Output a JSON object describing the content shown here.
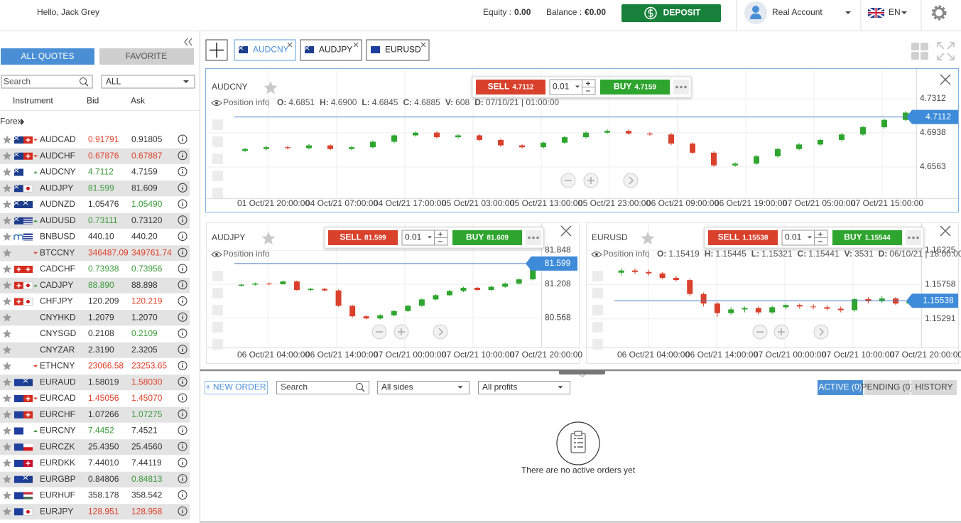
{
  "header": {
    "greeting": "Hello, Jack Grey",
    "equity_label": "Equity :",
    "equity": "0.00",
    "balance_label": "Balance :",
    "balance": "€0.00",
    "deposit": "DEPOSIT",
    "account": "Real Account",
    "language": "EN"
  },
  "sidebar": {
    "tabs": [
      "ALL QUOTES",
      "FAVORITE"
    ],
    "search": "Search",
    "filter": "ALL",
    "columns": [
      "Instrument",
      "Bid",
      "Ask"
    ],
    "group": "Forex",
    "rows": [
      {
        "symbol": "AUDCAD",
        "bid": "0.91791",
        "ask": "0.91805",
        "bid_dir": "down",
        "ask_dir": "flat",
        "arrow": "down"
      },
      {
        "symbol": "AUDCHF",
        "bid": "0.67876",
        "ask": "0.67887",
        "bid_dir": "down",
        "ask_dir": "down",
        "arrow": "down"
      },
      {
        "symbol": "AUDCNY",
        "bid": "4.7112",
        "ask": "4.7159",
        "bid_dir": "up",
        "ask_dir": "flat",
        "arrow": "up"
      },
      {
        "symbol": "AUDJPY",
        "bid": "81.599",
        "ask": "81.609",
        "bid_dir": "up",
        "ask_dir": "flat"
      },
      {
        "symbol": "AUDNZD",
        "bid": "1.05476",
        "ask": "1.05490",
        "bid_dir": "flat",
        "ask_dir": "up"
      },
      {
        "symbol": "AUDUSD",
        "bid": "0.73111",
        "ask": "0.73120",
        "bid_dir": "up",
        "ask_dir": "flat",
        "arrow": "up"
      },
      {
        "symbol": "BNBUSD",
        "bid": "440.10",
        "ask": "440.20",
        "bid_dir": "flat",
        "ask_dir": "flat"
      },
      {
        "symbol": "BTCCNY",
        "bid": "346487.09",
        "ask": "349761.74",
        "bid_dir": "down",
        "ask_dir": "down",
        "arrow": "down"
      },
      {
        "symbol": "CADCHF",
        "bid": "0.73938",
        "ask": "0.73956",
        "bid_dir": "up",
        "ask_dir": "up"
      },
      {
        "symbol": "CADJPY",
        "bid": "88.890",
        "ask": "88.898",
        "bid_dir": "up",
        "ask_dir": "flat",
        "arrow": "up"
      },
      {
        "symbol": "CHFJPY",
        "bid": "120.209",
        "ask": "120.219",
        "bid_dir": "flat",
        "ask_dir": "down"
      },
      {
        "symbol": "CNYHKD",
        "bid": "1.2079",
        "ask": "1.2070",
        "bid_dir": "flat",
        "ask_dir": "flat"
      },
      {
        "symbol": "CNYSGD",
        "bid": "0.2108",
        "ask": "0.2109",
        "bid_dir": "flat",
        "ask_dir": "up"
      },
      {
        "symbol": "CNYZAR",
        "bid": "2.3190",
        "ask": "2.3205",
        "bid_dir": "flat",
        "ask_dir": "flat"
      },
      {
        "symbol": "ETHCNY",
        "bid": "23066.58",
        "ask": "23253.65",
        "bid_dir": "down",
        "ask_dir": "down",
        "arrow": "down"
      },
      {
        "symbol": "EURAUD",
        "bid": "1.58019",
        "ask": "1.58030",
        "bid_dir": "flat",
        "ask_dir": "down"
      },
      {
        "symbol": "EURCAD",
        "bid": "1.45056",
        "ask": "1.45070",
        "bid_dir": "down",
        "ask_dir": "down",
        "arrow": "down"
      },
      {
        "symbol": "EURCHF",
        "bid": "1.07266",
        "ask": "1.07275",
        "bid_dir": "flat",
        "ask_dir": "up"
      },
      {
        "symbol": "EURCNY",
        "bid": "7.4452",
        "ask": "7.4521",
        "bid_dir": "up",
        "ask_dir": "flat",
        "arrow": "up"
      },
      {
        "symbol": "EURCZK",
        "bid": "25.4350",
        "ask": "25.4560",
        "bid_dir": "flat",
        "ask_dir": "flat"
      },
      {
        "symbol": "EURDKK",
        "bid": "7.44010",
        "ask": "7.44119",
        "bid_dir": "flat",
        "ask_dir": "flat"
      },
      {
        "symbol": "EURGBP",
        "bid": "0.84806",
        "ask": "0.84813",
        "bid_dir": "flat",
        "ask_dir": "up"
      },
      {
        "symbol": "EURHUF",
        "bid": "358.178",
        "ask": "358.542",
        "bid_dir": "flat",
        "ask_dir": "flat"
      },
      {
        "symbol": "EURJPY",
        "bid": "128.951",
        "ask": "128.958",
        "bid_dir": "down",
        "ask_dir": "down"
      }
    ]
  },
  "tabs": [
    "AUDCNY",
    "AUDJPY",
    "EURUSD"
  ],
  "charts": [
    {
      "symbol": "AUDCNY",
      "position_info": "Position info",
      "ohlc": [
        {
          "label": "O:",
          "value": "4.6851"
        },
        {
          "label": "H:",
          "value": "4.6900"
        },
        {
          "label": "L:",
          "value": "4.6845"
        },
        {
          "label": "C:",
          "value": "4.6885"
        },
        {
          "label": "V:",
          "value": "608"
        },
        {
          "label": "D:",
          "value": "07/10/21 | 01:00:00"
        }
      ],
      "sell_label": "SELL",
      "sell": "4.7112",
      "quantity": "0.01",
      "buy_label": "BUY",
      "buy": "4.7159",
      "last_price": 4.7112,
      "ylim": [
        4.6251,
        4.7616
      ],
      "yticks": [
        4.7312,
        4.6938,
        4.6563
      ],
      "time_labels": [
        "01 Oct/21 20:00:00",
        "04 Oct/21 07:00:00",
        "04 Oct/21 17:00:00",
        "05 Oct/21 03:00:00",
        "05 Oct/21 13:00:00",
        "05 Oct/21 23:00:00",
        "06 Oct/21 09:00:00",
        "06 Oct/21 19:00:00",
        "07 Oct/21 05:00:00",
        "07 Oct/21 15:00:00"
      ],
      "candles": [
        [
          4.674,
          4.6775,
          4.6725,
          4.676
        ],
        [
          4.676,
          4.6795,
          4.6745,
          4.678
        ],
        [
          4.678,
          4.6795,
          4.6755,
          4.677
        ],
        [
          4.677,
          4.6815,
          4.6755,
          4.68
        ],
        [
          4.68,
          4.6815,
          4.6745,
          4.676
        ],
        [
          4.676,
          4.6795,
          4.6745,
          4.678
        ],
        [
          4.678,
          4.6855,
          4.6765,
          4.684
        ],
        [
          4.684,
          4.6925,
          4.6825,
          4.691
        ],
        [
          4.691,
          4.6955,
          4.6895,
          4.694
        ],
        [
          4.694,
          4.6955,
          4.6875,
          4.689
        ],
        [
          4.689,
          4.6925,
          4.6875,
          4.691
        ],
        [
          4.691,
          4.6925,
          4.6845,
          4.686
        ],
        [
          4.686,
          4.6875,
          4.6785,
          4.68
        ],
        [
          4.68,
          4.6815,
          4.6765,
          4.678
        ],
        [
          4.678,
          4.6845,
          4.6765,
          4.683
        ],
        [
          4.683,
          4.6905,
          4.6815,
          4.689
        ],
        [
          4.689,
          4.6955,
          4.6875,
          4.694
        ],
        [
          4.694,
          4.6975,
          4.6925,
          4.696
        ],
        [
          4.696,
          4.6975,
          4.6915,
          4.693
        ],
        [
          4.693,
          4.6945,
          4.6905,
          4.692
        ],
        [
          4.692,
          4.6935,
          4.6805,
          4.682
        ],
        [
          4.682,
          4.6835,
          4.6705,
          4.672
        ],
        [
          4.672,
          4.6735,
          4.6565,
          4.658
        ],
        [
          4.658,
          4.6615,
          4.6565,
          4.66
        ],
        [
          4.66,
          4.6695,
          4.6585,
          4.668
        ],
        [
          4.668,
          4.6775,
          4.6665,
          4.676
        ],
        [
          4.676,
          4.6825,
          4.6745,
          4.681
        ],
        [
          4.681,
          4.6875,
          4.6795,
          4.686
        ],
        [
          4.686,
          4.6935,
          4.6845,
          4.692
        ],
        [
          4.692,
          4.7015,
          4.6905,
          4.7
        ],
        [
          4.7,
          4.7095,
          4.6985,
          4.708
        ],
        [
          4.708,
          4.7175,
          4.7065,
          4.716
        ]
      ]
    },
    {
      "symbol": "AUDJPY",
      "position_info": "Position info",
      "sell_label": "SELL",
      "sell": "81.599",
      "quantity": "0.01",
      "buy_label": "BUY",
      "buy": "81.609",
      "last_price": 81.599,
      "ylim": [
        80.064,
        82.311
      ],
      "yticks": [
        81.848,
        81.208,
        80.568
      ],
      "time_labels": [
        "06 Oct/21 04:00:00",
        "06 Oct/21 14:00:00",
        "07 Oct/21 00:00:00",
        "07 Oct/21 10:00:00",
        "07 Oct/21 20:00:00"
      ],
      "candles": [
        [
          81.18,
          81.22,
          81.16,
          81.2
        ],
        [
          81.2,
          81.24,
          81.18,
          81.22
        ],
        [
          81.22,
          81.24,
          81.19,
          81.21
        ],
        [
          81.21,
          81.28,
          81.19,
          81.26
        ],
        [
          81.26,
          81.28,
          81.08,
          81.1
        ],
        [
          81.1,
          81.14,
          81.08,
          81.12
        ],
        [
          81.12,
          81.14,
          81.07,
          81.09
        ],
        [
          81.09,
          81.11,
          80.78,
          80.8
        ],
        [
          80.8,
          80.82,
          80.58,
          80.6
        ],
        [
          80.6,
          80.62,
          80.54,
          80.56
        ],
        [
          80.56,
          80.64,
          80.54,
          80.62
        ],
        [
          80.62,
          80.72,
          80.6,
          80.7
        ],
        [
          80.7,
          80.82,
          80.68,
          80.8
        ],
        [
          80.8,
          80.94,
          80.78,
          80.92
        ],
        [
          80.92,
          81.02,
          80.9,
          81.0
        ],
        [
          81.0,
          81.1,
          80.98,
          81.08
        ],
        [
          81.08,
          81.16,
          81.06,
          81.14
        ],
        [
          81.14,
          81.16,
          81.08,
          81.1
        ],
        [
          81.1,
          81.18,
          81.08,
          81.16
        ],
        [
          81.16,
          81.24,
          81.14,
          81.22
        ],
        [
          81.22,
          81.32,
          81.2,
          81.3
        ],
        [
          81.3,
          81.62,
          81.28,
          81.6
        ]
      ]
    },
    {
      "symbol": "EURUSD",
      "position_info": "Position info",
      "ohlc": [
        {
          "label": "O:",
          "value": "1.15419"
        },
        {
          "label": "H:",
          "value": "1.15445"
        },
        {
          "label": "L:",
          "value": "1.15321"
        },
        {
          "label": "C:",
          "value": "1.15441"
        },
        {
          "label": "V:",
          "value": "3531"
        },
        {
          "label": "D:",
          "value": "06/10/21 | 18:00:00"
        }
      ],
      "sell_label": "SELL",
      "sell": "1.15538",
      "quantity": "0.01",
      "buy_label": "BUY",
      "buy": "1.15544",
      "last_price": 1.15538,
      "ylim": [
        1.14941,
        1.16556
      ],
      "yticks": [
        1.16225,
        1.15758,
        1.15291
      ],
      "time_labels": [
        "06 Oct/21 04:00:00",
        "06 Oct/21 14:00:00",
        "07 Oct/21 00:00:00",
        "07 Oct/21 10:00:00",
        "07 Oct/21 20:00:00"
      ],
      "candles": [
        [
          1.1592,
          1.1598,
          1.1588,
          1.1595
        ],
        [
          1.1595,
          1.1598,
          1.159,
          1.1593
        ],
        [
          1.1593,
          1.1596,
          1.1588,
          1.1591
        ],
        [
          1.1591,
          1.1593,
          1.1583,
          1.1585
        ],
        [
          1.1585,
          1.1588,
          1.158,
          1.1582
        ],
        [
          1.1582,
          1.1584,
          1.156,
          1.1563
        ],
        [
          1.1563,
          1.1565,
          1.1546,
          1.155
        ],
        [
          1.155,
          1.1552,
          1.1532,
          1.1537
        ],
        [
          1.1537,
          1.1545,
          1.1535,
          1.1542
        ],
        [
          1.1542,
          1.1546,
          1.1538,
          1.1544
        ],
        [
          1.1544,
          1.1546,
          1.1535,
          1.1538
        ],
        [
          1.1538,
          1.1547,
          1.1536,
          1.1545
        ],
        [
          1.1545,
          1.155,
          1.1542,
          1.1548
        ],
        [
          1.1548,
          1.155,
          1.1543,
          1.1546
        ],
        [
          1.1546,
          1.1549,
          1.1542,
          1.1545
        ],
        [
          1.1545,
          1.1548,
          1.1541,
          1.1543
        ],
        [
          1.1543,
          1.1546,
          1.1538,
          1.1541
        ],
        [
          1.1541,
          1.1558,
          1.1539,
          1.1556
        ],
        [
          1.1556,
          1.1559,
          1.155,
          1.1553
        ],
        [
          1.1553,
          1.156,
          1.1551,
          1.1557
        ],
        [
          1.1557,
          1.1559,
          1.1548,
          1.155
        ],
        [
          1.155,
          1.1556,
          1.1548,
          1.1554
        ]
      ]
    }
  ],
  "orders": {
    "new_order": "+ NEW ORDER",
    "search": "Search",
    "sides": "All sides",
    "profits": "All profits",
    "tabs": [
      "ACTIVE (0)",
      "PENDING (0)",
      "HISTORY"
    ],
    "empty": "There are no active orders yet"
  }
}
